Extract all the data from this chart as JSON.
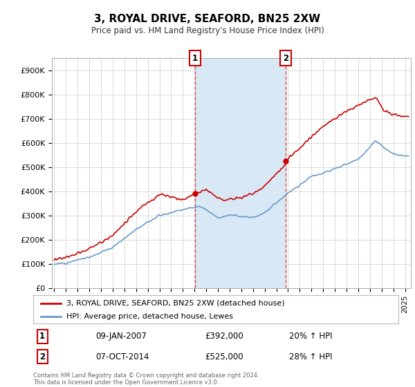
{
  "title": "3, ROYAL DRIVE, SEAFORD, BN25 2XW",
  "subtitle": "Price paid vs. HM Land Registry's House Price Index (HPI)",
  "ylabel_ticks": [
    "£0",
    "£100K",
    "£200K",
    "£300K",
    "£400K",
    "£500K",
    "£600K",
    "£700K",
    "£800K",
    "£900K"
  ],
  "ytick_values": [
    0,
    100000,
    200000,
    300000,
    400000,
    500000,
    600000,
    700000,
    800000,
    900000
  ],
  "ylim": [
    0,
    950000
  ],
  "xlim_start": 1994.8,
  "xlim_end": 2025.5,
  "purchase1_x": 2007.03,
  "purchase1_y": 392000,
  "purchase1_label": "1",
  "purchase2_x": 2014.78,
  "purchase2_y": 525000,
  "purchase2_label": "2",
  "line_color_price": "#cc0000",
  "line_color_hpi": "#6699cc",
  "shade_color": "#d8e8f5",
  "vertical_line_color": "#dd3333",
  "background_color": "#ffffff",
  "grid_color": "#cccccc",
  "legend_label_price": "3, ROYAL DRIVE, SEAFORD, BN25 2XW (detached house)",
  "legend_label_hpi": "HPI: Average price, detached house, Lewes",
  "table_row1": [
    "1",
    "09-JAN-2007",
    "£392,000",
    "20% ↑ HPI"
  ],
  "table_row2": [
    "2",
    "07-OCT-2014",
    "£525,000",
    "28% ↑ HPI"
  ],
  "footnote": "Contains HM Land Registry data © Crown copyright and database right 2024.\nThis data is licensed under the Open Government Licence v3.0.",
  "marker_box_color": "#cc0000"
}
